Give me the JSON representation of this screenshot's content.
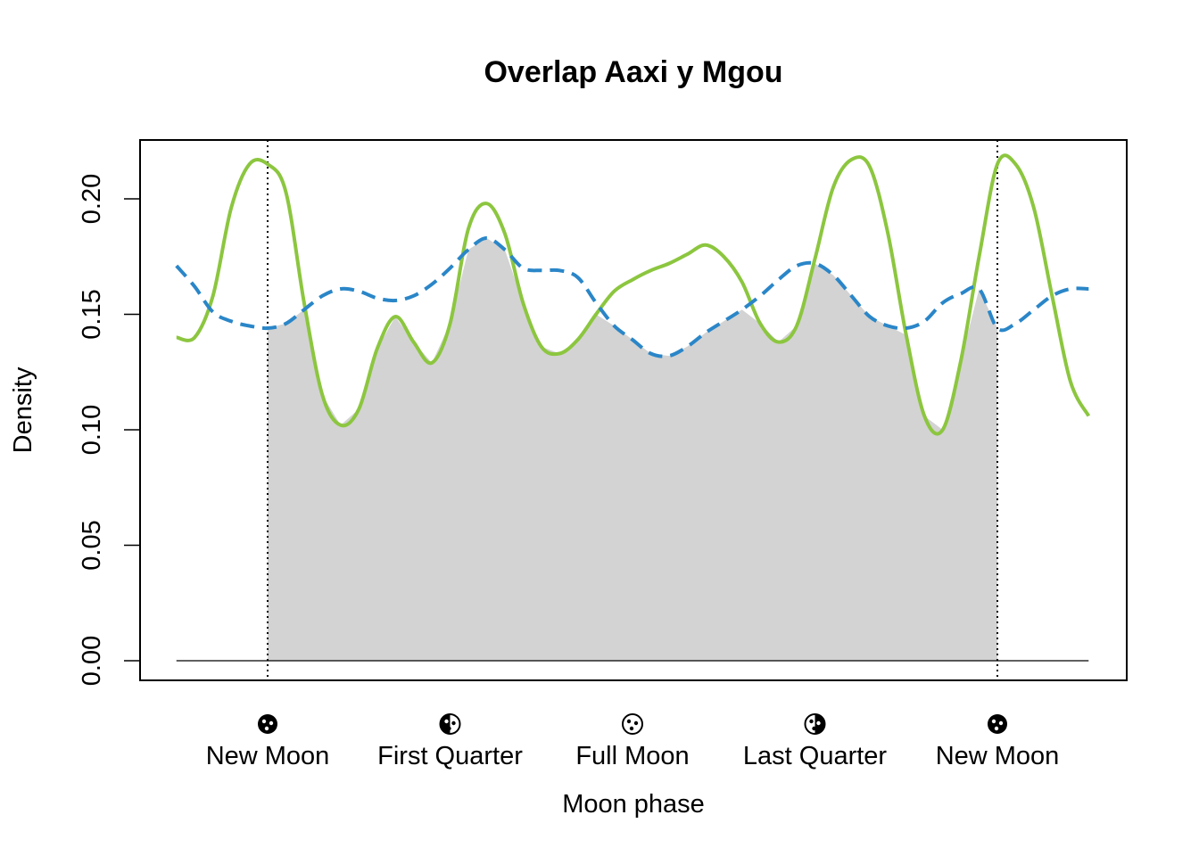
{
  "chart_data": {
    "type": "line",
    "title": "Overlap Aaxi y Mgou",
    "xlabel": "Moon phase",
    "ylabel": "Density",
    "xlim": [
      -0.7,
      1.7
    ],
    "ylim": [
      0,
      0.22
    ],
    "yticks": [
      "0.00",
      "0.05",
      "0.10",
      "0.15",
      "0.20"
    ],
    "ytick_values": [
      0,
      0.05,
      0.1,
      0.15,
      0.2
    ],
    "xticks": [
      {
        "x": 0.0,
        "label": "New Moon",
        "icon": "new-moon-icon"
      },
      {
        "x": 0.25,
        "label": "First Quarter",
        "icon": "first-quarter-icon"
      },
      {
        "x": 0.5,
        "label": "Full Moon",
        "icon": "full-moon-icon"
      },
      {
        "x": 0.75,
        "label": "Last Quarter",
        "icon": "last-quarter-icon"
      },
      {
        "x": 1.0,
        "label": "New Moon",
        "icon": "new-moon-icon"
      }
    ],
    "vlines": [
      0.0,
      1.0
    ],
    "x": [
      -0.125,
      -0.1,
      -0.075,
      -0.05,
      -0.025,
      0.0,
      0.025,
      0.05,
      0.075,
      0.1,
      0.125,
      0.15,
      0.175,
      0.2,
      0.225,
      0.25,
      0.275,
      0.3,
      0.325,
      0.35,
      0.375,
      0.4,
      0.425,
      0.45,
      0.475,
      0.5,
      0.525,
      0.55,
      0.575,
      0.6,
      0.625,
      0.65,
      0.675,
      0.7,
      0.725,
      0.75,
      0.775,
      0.8,
      0.825,
      0.85,
      0.875,
      0.9,
      0.925,
      0.95,
      0.975,
      1.0,
      1.025,
      1.05,
      1.075,
      1.1,
      1.125
    ],
    "series": [
      {
        "color": "#8cc63f",
        "dash": "solid",
        "values": [
          0.14,
          0.14,
          0.158,
          0.196,
          0.215,
          0.215,
          0.203,
          0.155,
          0.115,
          0.102,
          0.109,
          0.135,
          0.149,
          0.138,
          0.129,
          0.146,
          0.187,
          0.198,
          0.185,
          0.155,
          0.136,
          0.133,
          0.139,
          0.15,
          0.16,
          0.165,
          0.169,
          0.172,
          0.176,
          0.18,
          0.175,
          0.164,
          0.146,
          0.138,
          0.145,
          0.174,
          0.205,
          0.217,
          0.214,
          0.185,
          0.141,
          0.106,
          0.1,
          0.13,
          0.175,
          0.215,
          0.215,
          0.196,
          0.158,
          0.121,
          0.106
        ]
      },
      {
        "color": "#2a86c8",
        "dash": "dashed",
        "values": [
          0.171,
          0.162,
          0.151,
          0.147,
          0.145,
          0.144,
          0.146,
          0.152,
          0.158,
          0.161,
          0.16,
          0.157,
          0.156,
          0.158,
          0.163,
          0.17,
          0.178,
          0.183,
          0.178,
          0.17,
          0.169,
          0.169,
          0.166,
          0.155,
          0.145,
          0.139,
          0.133,
          0.132,
          0.136,
          0.142,
          0.147,
          0.152,
          0.158,
          0.165,
          0.171,
          0.172,
          0.167,
          0.158,
          0.149,
          0.145,
          0.144,
          0.147,
          0.155,
          0.159,
          0.161,
          0.144,
          0.146,
          0.152,
          0.158,
          0.161,
          0.161
        ]
      }
    ],
    "overlap_fill_color": "#d3d3d3",
    "overlap_range": [
      0.0,
      1.0
    ],
    "grid": false,
    "legend": "none"
  }
}
